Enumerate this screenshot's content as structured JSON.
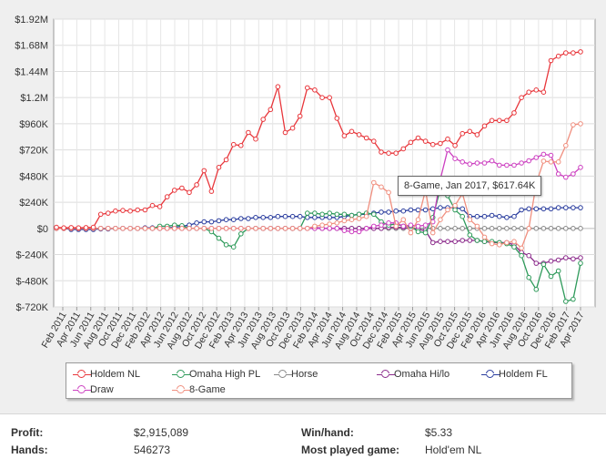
{
  "chart_data": {
    "type": "line",
    "ylim": [
      -720000,
      1920000
    ],
    "y_ticks": [
      "$1.92M",
      "$1.68M",
      "$1.44M",
      "$1.2M",
      "$960K",
      "$720K",
      "$480K",
      "$240K",
      "$0",
      "$-240K",
      "$-480K",
      "$-720K"
    ],
    "x_ticks": [
      "Feb 2011",
      "Apr 2011",
      "Jun 2011",
      "Aug 2011",
      "Oct 2011",
      "Dec 2011",
      "Feb 2012",
      "Apr 2012",
      "Jun 2012",
      "Aug 2012",
      "Oct 2012",
      "Dec 2012",
      "Feb 2013",
      "Apr 2013",
      "Jun 2013",
      "Aug 2013",
      "Oct 2013",
      "Dec 2013",
      "Feb 2014",
      "Apr 2014",
      "Jun 2014",
      "Aug 2014",
      "Oct 2014",
      "Dec 2014",
      "Feb 2015",
      "Apr 2015",
      "Jun 2015",
      "Aug 2015",
      "Oct 2015",
      "Dec 2015",
      "Feb 2016",
      "Apr 2016",
      "Jun 2016",
      "Aug 2016",
      "Oct 2016",
      "Dec 2016",
      "Feb 2017",
      "Apr 2017"
    ],
    "grid": true,
    "legend_position": "bottom",
    "series": [
      {
        "name": "Holdem NL",
        "color": "#e8363b",
        "values": [
          10000,
          5000,
          8000,
          5000,
          8000,
          10000,
          130000,
          140000,
          160000,
          165000,
          160000,
          170000,
          170000,
          210000,
          200000,
          290000,
          350000,
          370000,
          330000,
          400000,
          530000,
          340000,
          560000,
          630000,
          770000,
          760000,
          880000,
          820000,
          1000000,
          1090000,
          1300000,
          880000,
          920000,
          1030000,
          1290000,
          1270000,
          1200000,
          1200000,
          1010000,
          850000,
          890000,
          860000,
          830000,
          800000,
          700000,
          690000,
          690000,
          730000,
          790000,
          830000,
          800000,
          770000,
          780000,
          820000,
          760000,
          870000,
          890000,
          860000,
          940000,
          990000,
          990000,
          990000,
          1060000,
          1200000,
          1250000,
          1270000,
          1250000,
          1540000,
          1580000,
          1610000,
          1610000,
          1620000
        ]
      },
      {
        "name": "Omaha High PL",
        "color": "#2e9a5a",
        "values": [
          0,
          0,
          0,
          0,
          0,
          0,
          0,
          0,
          0,
          0,
          0,
          0,
          0,
          0,
          20000,
          20000,
          30000,
          25000,
          0,
          0,
          0,
          -30000,
          -90000,
          -150000,
          -170000,
          -50000,
          0,
          0,
          0,
          0,
          0,
          0,
          0,
          0,
          140000,
          140000,
          130000,
          140000,
          130000,
          130000,
          120000,
          130000,
          140000,
          130000,
          60000,
          30000,
          40000,
          20000,
          20000,
          -30000,
          -40000,
          100000,
          360000,
          300000,
          170000,
          110000,
          -60000,
          -110000,
          -120000,
          -120000,
          -130000,
          -140000,
          -170000,
          -250000,
          -450000,
          -560000,
          -330000,
          -440000,
          -390000,
          -670000,
          -650000,
          -320000
        ]
      },
      {
        "name": "Horse",
        "color": "#888888",
        "values": [
          0,
          0,
          0,
          0,
          0,
          0,
          0,
          0,
          0,
          0,
          0,
          0,
          0,
          0,
          0,
          0,
          0,
          0,
          0,
          0,
          0,
          0,
          0,
          0,
          0,
          0,
          0,
          0,
          0,
          0,
          0,
          0,
          0,
          0,
          0,
          0,
          0,
          0,
          0,
          0,
          0,
          0,
          0,
          0,
          0,
          0,
          0,
          0,
          0,
          0,
          0,
          0,
          0,
          0,
          0,
          0,
          0,
          0,
          0,
          0,
          0,
          0,
          0,
          0,
          0,
          0,
          0,
          0,
          0,
          0,
          0,
          0
        ]
      },
      {
        "name": "Omaha Hi/lo",
        "color": "#8b2a8b",
        "values": [
          0,
          0,
          0,
          0,
          0,
          0,
          0,
          0,
          0,
          0,
          0,
          0,
          0,
          0,
          0,
          0,
          0,
          0,
          0,
          0,
          0,
          0,
          0,
          0,
          0,
          0,
          0,
          0,
          0,
          0,
          0,
          0,
          0,
          0,
          0,
          10000,
          0,
          0,
          0,
          0,
          0,
          0,
          0,
          0,
          0,
          10000,
          10000,
          10000,
          0,
          -10000,
          -20000,
          -130000,
          -120000,
          -120000,
          -120000,
          -110000,
          -110000,
          -110000,
          -120000,
          -130000,
          -130000,
          -130000,
          -150000,
          -220000,
          -250000,
          -320000,
          -320000,
          -300000,
          -290000,
          -270000,
          -280000,
          -270000
        ]
      },
      {
        "name": "Holdem FL",
        "color": "#2a3d9e",
        "values": [
          0,
          0,
          -10000,
          -10000,
          -10000,
          -10000,
          -5000,
          -5000,
          0,
          0,
          0,
          0,
          5000,
          5000,
          0,
          5000,
          10000,
          20000,
          30000,
          50000,
          60000,
          60000,
          70000,
          80000,
          80000,
          90000,
          90000,
          100000,
          100000,
          100000,
          110000,
          110000,
          110000,
          110000,
          100000,
          100000,
          100000,
          100000,
          100000,
          110000,
          120000,
          130000,
          130000,
          140000,
          150000,
          150000,
          160000,
          160000,
          170000,
          170000,
          170000,
          180000,
          190000,
          190000,
          190000,
          180000,
          110000,
          110000,
          110000,
          120000,
          110000,
          100000,
          110000,
          170000,
          180000,
          180000,
          180000,
          180000,
          190000,
          190000,
          190000,
          190000
        ]
      },
      {
        "name": "Draw",
        "color": "#cc3fc0",
        "values": [
          0,
          0,
          0,
          0,
          0,
          0,
          0,
          0,
          0,
          0,
          0,
          0,
          0,
          0,
          0,
          0,
          0,
          0,
          0,
          0,
          0,
          0,
          0,
          0,
          0,
          0,
          0,
          0,
          0,
          0,
          0,
          0,
          0,
          0,
          0,
          0,
          0,
          0,
          0,
          -20000,
          -30000,
          -30000,
          0,
          20000,
          30000,
          50000,
          50000,
          20000,
          30000,
          20000,
          30000,
          60000,
          450000,
          720000,
          640000,
          610000,
          590000,
          600000,
          600000,
          620000,
          580000,
          580000,
          580000,
          600000,
          620000,
          650000,
          680000,
          670000,
          500000,
          470000,
          500000,
          560000
        ]
      },
      {
        "name": "8-Game",
        "color": "#f08f7f",
        "values": [
          0,
          0,
          0,
          0,
          0,
          0,
          0,
          0,
          0,
          0,
          0,
          0,
          0,
          0,
          0,
          0,
          0,
          0,
          0,
          0,
          0,
          0,
          0,
          0,
          0,
          0,
          0,
          0,
          0,
          0,
          0,
          0,
          0,
          0,
          0,
          20000,
          30000,
          40000,
          50000,
          70000,
          80000,
          90000,
          110000,
          420000,
          380000,
          330000,
          20000,
          80000,
          -40000,
          80000,
          350000,
          -40000,
          80000,
          170000,
          210000,
          320000,
          80000,
          20000,
          -80000,
          -140000,
          -150000,
          -130000,
          -120000,
          -180000,
          0,
          410000,
          617640,
          610000,
          610000,
          760000,
          950000,
          960000
        ]
      }
    ]
  },
  "tooltip": "8-Game, Jan 2017, $617.64K",
  "stats": {
    "profit_label": "Profit:",
    "profit_value": "$2,915,089",
    "winhand_label": "Win/hand:",
    "winhand_value": "$5.33",
    "hands_label": "Hands:",
    "hands_value": "546273",
    "most_played_label": "Most played game:",
    "most_played_value": "Hold'em NL"
  }
}
